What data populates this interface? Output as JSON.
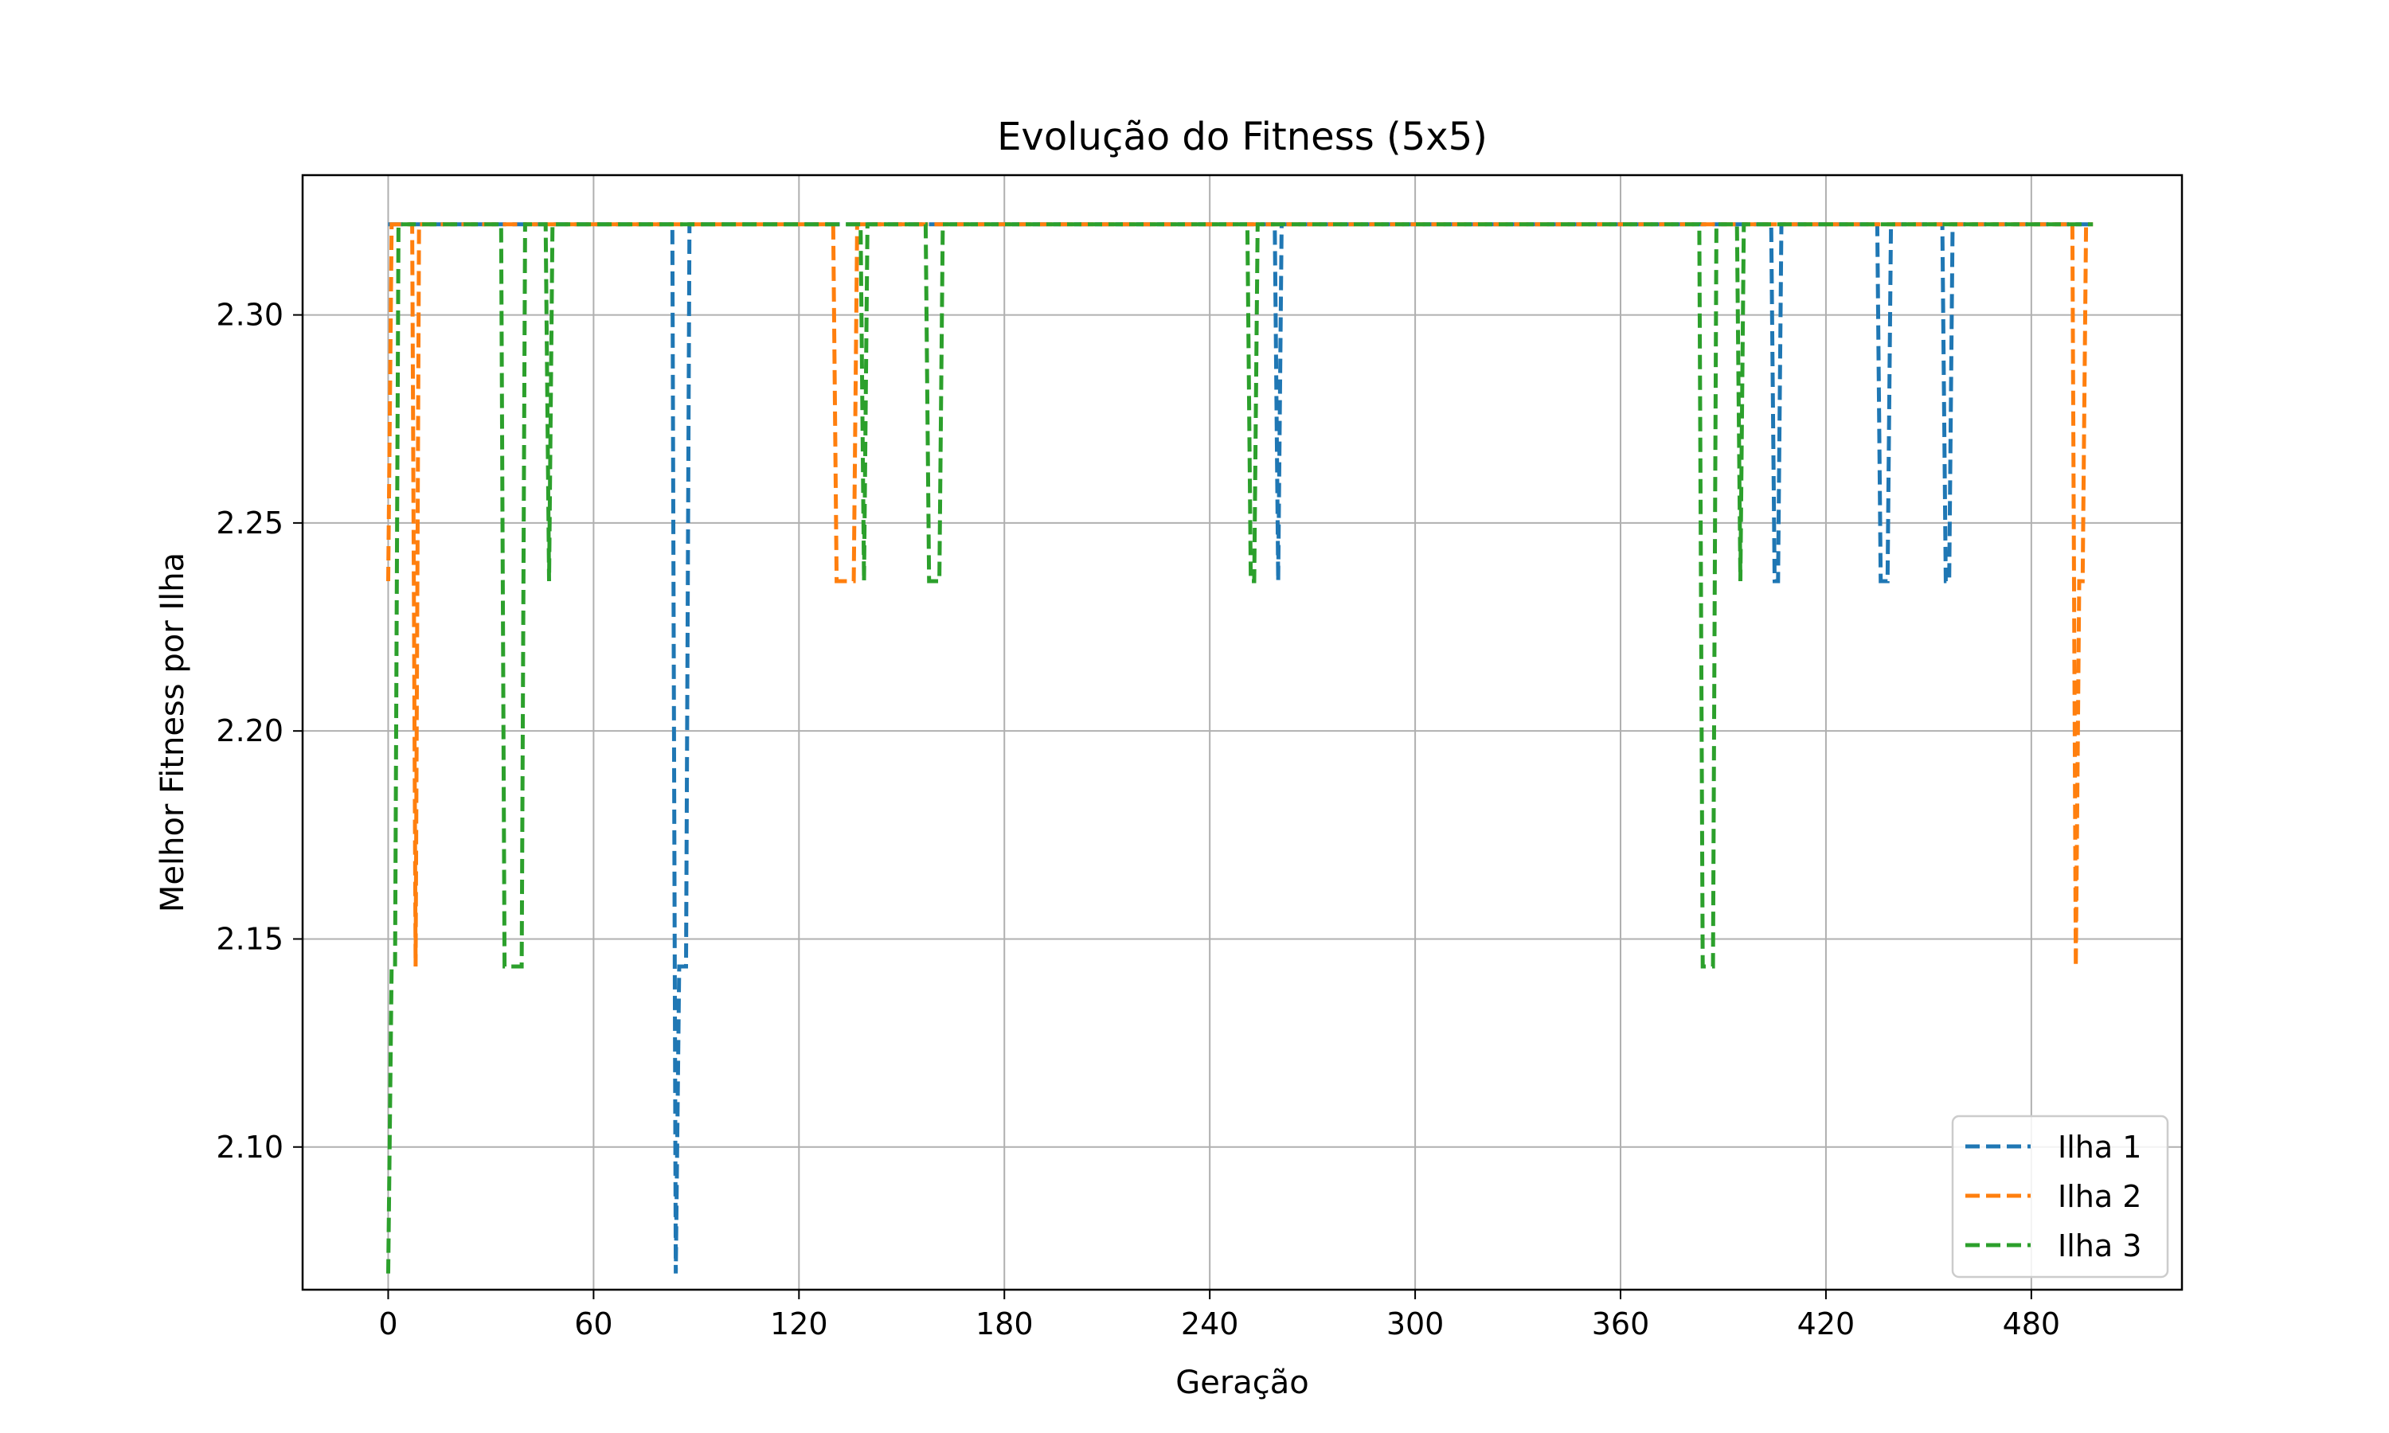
{
  "chart_data": {
    "type": "line",
    "title": "Evolução do Fitness (5x5)",
    "xlabel": "Geração",
    "ylabel": "Melhor Fitness por Ilha",
    "xlim": [
      -25,
      524
    ],
    "ylim": [
      2.0657,
      2.3336
    ],
    "xticks": [
      0,
      60,
      120,
      180,
      240,
      300,
      360,
      420,
      480
    ],
    "yticks": [
      2.1,
      2.15,
      2.2,
      2.25,
      2.3
    ],
    "ytick_labels": [
      "2.10",
      "2.15",
      "2.20",
      "2.25",
      "2.30"
    ],
    "grid": true,
    "line_style": "dashed",
    "legend_position": "lower-right",
    "series": [
      {
        "name": "Ilha 1",
        "color": "#1f77b4",
        "x": [
          0,
          83,
          84,
          85,
          86,
          87,
          88,
          89,
          259,
          260,
          261,
          404,
          405,
          406,
          407,
          435,
          436,
          438,
          439,
          440,
          454,
          455,
          456,
          457,
          458,
          498
        ],
        "y": [
          2.3218,
          2.3218,
          2.0696,
          2.1434,
          2.1434,
          2.1434,
          2.3218,
          2.3218,
          2.3218,
          2.236,
          2.3218,
          2.3218,
          2.236,
          2.236,
          2.3218,
          2.3218,
          2.236,
          2.236,
          2.3218,
          2.3218,
          2.3218,
          2.236,
          2.236,
          2.3218,
          2.3218,
          2.3218
        ]
      },
      {
        "name": "Ilha 2",
        "color": "#ff7f0e",
        "x": [
          0,
          1,
          2,
          3,
          4,
          5,
          6,
          7,
          8,
          9,
          130,
          131,
          132,
          133,
          134,
          135,
          136,
          137,
          138,
          139,
          492,
          493,
          494,
          495,
          496,
          497,
          498
        ],
        "y": [
          2.236,
          2.3218,
          2.3218,
          2.3218,
          2.3218,
          2.3218,
          2.3218,
          2.3218,
          2.1434,
          2.3218,
          2.3218,
          2.236,
          2.236,
          2.236,
          2.236,
          2.236,
          2.236,
          2.3218,
          2.3218,
          2.3218,
          2.3218,
          2.1434,
          2.236,
          2.236,
          2.3218,
          2.3218,
          2.3218
        ]
      },
      {
        "name": "Ilha 3",
        "color": "#2ca02c",
        "x": [
          0,
          1,
          2,
          3,
          4,
          33,
          34,
          35,
          36,
          37,
          38,
          39,
          40,
          46,
          47,
          48,
          138,
          139,
          140,
          157,
          158,
          159,
          160,
          161,
          162,
          251,
          252,
          253,
          254,
          383,
          384,
          385,
          386,
          387,
          388,
          394,
          395,
          396,
          498
        ],
        "y": [
          2.0696,
          2.1434,
          2.1434,
          2.3218,
          2.3218,
          2.3218,
          2.1434,
          2.1434,
          2.1434,
          2.1434,
          2.1434,
          2.1434,
          2.3218,
          2.3218,
          2.236,
          2.3218,
          2.3218,
          2.236,
          2.3218,
          2.3218,
          2.236,
          2.236,
          2.236,
          2.236,
          2.3218,
          2.3218,
          2.236,
          2.236,
          2.3218,
          2.3218,
          2.1434,
          2.1434,
          2.1434,
          2.1434,
          2.3218,
          2.3218,
          2.236,
          2.3218,
          2.3218
        ]
      }
    ]
  }
}
